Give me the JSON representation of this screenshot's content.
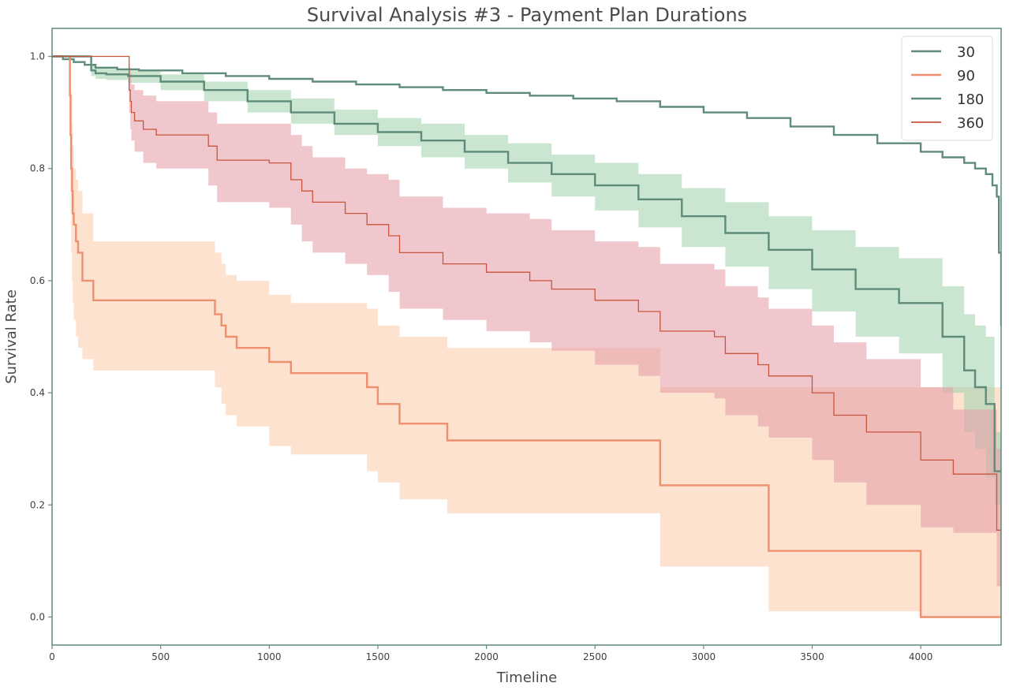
{
  "chart_data": {
    "type": "line",
    "title": "Survival Analysis #3 - Payment Plan Durations",
    "xlabel": "Timeline",
    "ylabel": "Survival Rate",
    "xlim": [
      0,
      4370
    ],
    "ylim": [
      -0.05,
      1.05
    ],
    "xticks": [
      "0",
      "500",
      "1000",
      "1500",
      "2000",
      "2500",
      "3000",
      "3500",
      "4000"
    ],
    "yticks": [
      "0.0",
      "0.2",
      "0.4",
      "0.6",
      "0.8",
      "1.0"
    ],
    "grid": false,
    "legend_position": "top-right",
    "step_interpolation": "post",
    "colors": {
      "s30_line": "#5e8b7a",
      "s90_line": "#ee8f6d",
      "s90_band": "#fbcfb0",
      "s180_line": "#5e8b7a",
      "s180_band": "#a7d4b0",
      "s360_line": "#c8553d",
      "s360_band": "#e6a2aa",
      "axes": "#5e8b7a"
    },
    "series": [
      {
        "name": "30",
        "x": [
          0,
          50,
          100,
          150,
          200,
          300,
          400,
          600,
          800,
          1000,
          1200,
          1400,
          1600,
          1800,
          2000,
          2200,
          2400,
          2600,
          2800,
          3000,
          3200,
          3400,
          3600,
          3800,
          4000,
          4100,
          4200,
          4250,
          4300,
          4330,
          4350,
          4360,
          4370
        ],
        "y": [
          1.0,
          0.995,
          0.99,
          0.985,
          0.98,
          0.977,
          0.975,
          0.97,
          0.965,
          0.96,
          0.955,
          0.95,
          0.945,
          0.94,
          0.935,
          0.93,
          0.925,
          0.92,
          0.91,
          0.9,
          0.89,
          0.875,
          0.86,
          0.845,
          0.83,
          0.82,
          0.81,
          0.8,
          0.79,
          0.77,
          0.75,
          0.65,
          0.52
        ]
      },
      {
        "name": "90",
        "x": [
          0,
          82,
          85,
          88,
          92,
          95,
          100,
          110,
          120,
          140,
          190,
          750,
          780,
          800,
          850,
          1000,
          1100,
          1450,
          1500,
          1600,
          1820,
          2800,
          3300,
          4000
        ],
        "y": [
          1.0,
          0.93,
          0.86,
          0.8,
          0.76,
          0.72,
          0.7,
          0.67,
          0.65,
          0.6,
          0.565,
          0.54,
          0.52,
          0.5,
          0.48,
          0.455,
          0.435,
          0.41,
          0.38,
          0.345,
          0.315,
          0.235,
          0.118,
          0.0
        ],
        "ci_lower": [
          1.0,
          0.82,
          0.72,
          0.65,
          0.6,
          0.56,
          0.53,
          0.5,
          0.48,
          0.46,
          0.44,
          0.41,
          0.38,
          0.36,
          0.34,
          0.305,
          0.29,
          0.26,
          0.24,
          0.21,
          0.185,
          0.09,
          0.01,
          0.0
        ],
        "ci_upper": [
          1.0,
          1.0,
          1.0,
          0.94,
          0.88,
          0.84,
          0.8,
          0.78,
          0.76,
          0.72,
          0.67,
          0.65,
          0.63,
          0.61,
          0.6,
          0.575,
          0.56,
          0.55,
          0.52,
          0.5,
          0.48,
          0.41,
          0.41,
          0.41
        ]
      },
      {
        "name": "180",
        "x": [
          0,
          180,
          200,
          250,
          350,
          500,
          700,
          900,
          1100,
          1300,
          1500,
          1700,
          1900,
          2100,
          2300,
          2500,
          2700,
          2900,
          3100,
          3300,
          3500,
          3700,
          3900,
          4100,
          4200,
          4250,
          4300,
          4340,
          4360,
          4370
        ],
        "y": [
          1.0,
          0.975,
          0.97,
          0.968,
          0.965,
          0.955,
          0.94,
          0.92,
          0.9,
          0.88,
          0.865,
          0.85,
          0.83,
          0.81,
          0.79,
          0.77,
          0.745,
          0.715,
          0.685,
          0.655,
          0.62,
          0.585,
          0.56,
          0.5,
          0.44,
          0.41,
          0.38,
          0.26,
          0.26,
          0.26
        ],
        "ci_lower": [
          1.0,
          0.965,
          0.96,
          0.958,
          0.953,
          0.94,
          0.92,
          0.9,
          0.88,
          0.86,
          0.84,
          0.82,
          0.8,
          0.775,
          0.75,
          0.725,
          0.695,
          0.66,
          0.625,
          0.585,
          0.545,
          0.5,
          0.47,
          0.4,
          0.33,
          0.3,
          0.25,
          0.2,
          0.2,
          0.2
        ],
        "ci_upper": [
          1.0,
          0.985,
          0.98,
          0.978,
          0.975,
          0.968,
          0.955,
          0.94,
          0.925,
          0.905,
          0.89,
          0.88,
          0.86,
          0.845,
          0.825,
          0.81,
          0.79,
          0.765,
          0.74,
          0.715,
          0.69,
          0.66,
          0.64,
          0.59,
          0.54,
          0.52,
          0.5,
          0.33,
          0.33,
          0.33
        ]
      },
      {
        "name": "360",
        "x": [
          0,
          355,
          360,
          365,
          380,
          420,
          480,
          720,
          760,
          1000,
          1100,
          1150,
          1200,
          1350,
          1450,
          1550,
          1600,
          1800,
          2000,
          2200,
          2300,
          2500,
          2700,
          2800,
          3050,
          3100,
          3250,
          3300,
          3500,
          3600,
          3750,
          4000,
          4150,
          4350,
          4370
        ],
        "y": [
          1.0,
          0.94,
          0.92,
          0.9,
          0.885,
          0.87,
          0.86,
          0.84,
          0.815,
          0.81,
          0.78,
          0.76,
          0.74,
          0.72,
          0.7,
          0.68,
          0.65,
          0.63,
          0.615,
          0.6,
          0.585,
          0.565,
          0.545,
          0.51,
          0.5,
          0.47,
          0.45,
          0.43,
          0.4,
          0.36,
          0.33,
          0.28,
          0.255,
          0.155,
          0.0
        ],
        "ci_lower": [
          1.0,
          0.9,
          0.87,
          0.85,
          0.83,
          0.81,
          0.8,
          0.77,
          0.74,
          0.73,
          0.7,
          0.67,
          0.65,
          0.63,
          0.61,
          0.58,
          0.55,
          0.53,
          0.51,
          0.49,
          0.475,
          0.45,
          0.43,
          0.4,
          0.39,
          0.36,
          0.34,
          0.32,
          0.28,
          0.24,
          0.2,
          0.16,
          0.15,
          0.055,
          0.0
        ],
        "ci_upper": [
          1.0,
          0.98,
          0.97,
          0.95,
          0.94,
          0.93,
          0.92,
          0.9,
          0.88,
          0.88,
          0.86,
          0.84,
          0.82,
          0.8,
          0.79,
          0.78,
          0.75,
          0.73,
          0.72,
          0.71,
          0.69,
          0.67,
          0.66,
          0.63,
          0.62,
          0.59,
          0.57,
          0.55,
          0.52,
          0.49,
          0.46,
          0.41,
          0.37,
          0.3,
          0.3
        ]
      }
    ]
  }
}
